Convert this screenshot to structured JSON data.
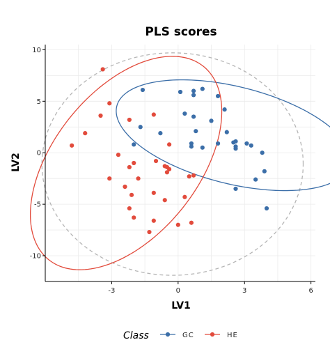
{
  "chart_data": {
    "type": "scatter",
    "title": "PLS scores",
    "xlabel": "LV1",
    "ylabel": "LV2",
    "xlim": [
      -6.0,
      6.2
    ],
    "ylim": [
      -12.5,
      10.5
    ],
    "x_ticks": [
      -3,
      0,
      3,
      6
    ],
    "y_ticks": [
      -10,
      -5,
      0,
      5,
      10
    ],
    "x_tick_labels": [
      "-3",
      "0",
      "3",
      "6"
    ],
    "y_tick_labels": [
      "-10",
      "-5",
      "0",
      "5",
      "10"
    ],
    "grid": true,
    "legend": {
      "title": "Class",
      "position": "bottom"
    },
    "series": [
      {
        "name": "GC",
        "color": "#3b6ea8",
        "ellipse": {
          "cx": 2.5,
          "cy": 1.7,
          "rx": 6.4,
          "ry": 4.0,
          "angle_deg": -46
        },
        "points": [
          [
            -1.6,
            6.1
          ],
          [
            0.1,
            5.9
          ],
          [
            0.7,
            6.0
          ],
          [
            1.1,
            6.2
          ],
          [
            0.7,
            5.6
          ],
          [
            1.8,
            5.5
          ],
          [
            0.3,
            3.8
          ],
          [
            0.7,
            3.5
          ],
          [
            1.5,
            3.1
          ],
          [
            2.1,
            4.2
          ],
          [
            -1.7,
            2.5
          ],
          [
            0.8,
            2.1
          ],
          [
            -0.8,
            1.9
          ],
          [
            2.2,
            2.0
          ],
          [
            -2.0,
            0.8
          ],
          [
            0.6,
            0.9
          ],
          [
            0.6,
            0.6
          ],
          [
            1.1,
            0.5
          ],
          [
            1.8,
            0.9
          ],
          [
            2.5,
            1.0
          ],
          [
            2.6,
            1.1
          ],
          [
            2.6,
            0.6
          ],
          [
            2.6,
            0.4
          ],
          [
            3.1,
            0.9
          ],
          [
            3.3,
            0.7
          ],
          [
            3.8,
            0.0
          ],
          [
            3.9,
            -1.8
          ],
          [
            3.5,
            -2.6
          ],
          [
            2.6,
            -3.5
          ],
          [
            4.0,
            -5.4
          ]
        ]
      },
      {
        "name": "HE",
        "color": "#e24b3c",
        "ellipse": {
          "cx": -2.35,
          "cy": -1.0,
          "rx": 10.6,
          "ry": 3.7,
          "angle_deg": 77
        },
        "points": [
          [
            -3.4,
            8.1
          ],
          [
            -3.1,
            4.8
          ],
          [
            -3.5,
            3.6
          ],
          [
            -2.2,
            3.2
          ],
          [
            -1.1,
            3.7
          ],
          [
            -4.2,
            1.9
          ],
          [
            -4.8,
            0.7
          ],
          [
            -0.4,
            0.8
          ],
          [
            -2.7,
            -0.2
          ],
          [
            -1.0,
            -0.8
          ],
          [
            -2.0,
            -1.0
          ],
          [
            -2.2,
            -1.4
          ],
          [
            -0.6,
            -1.3
          ],
          [
            -0.5,
            -1.4
          ],
          [
            -0.4,
            -1.6
          ],
          [
            -0.5,
            -1.9
          ],
          [
            -3.1,
            -2.5
          ],
          [
            -1.8,
            -2.5
          ],
          [
            0.7,
            -2.2
          ],
          [
            0.5,
            -2.3
          ],
          [
            -2.4,
            -3.3
          ],
          [
            -2.1,
            -4.1
          ],
          [
            -1.1,
            -3.9
          ],
          [
            -0.6,
            -4.6
          ],
          [
            0.3,
            -4.3
          ],
          [
            -2.2,
            -5.4
          ],
          [
            -2.0,
            -6.3
          ],
          [
            -1.1,
            -6.6
          ],
          [
            0.6,
            -6.8
          ],
          [
            0.0,
            -7.0
          ],
          [
            -1.3,
            -7.7
          ]
        ]
      }
    ],
    "overall_ellipse": {
      "cx": -0.25,
      "cy": -1.1,
      "rx": 5.9,
      "ry": 10.8,
      "angle_deg": 0,
      "color": "#b5b5b5",
      "dashed": true
    }
  }
}
